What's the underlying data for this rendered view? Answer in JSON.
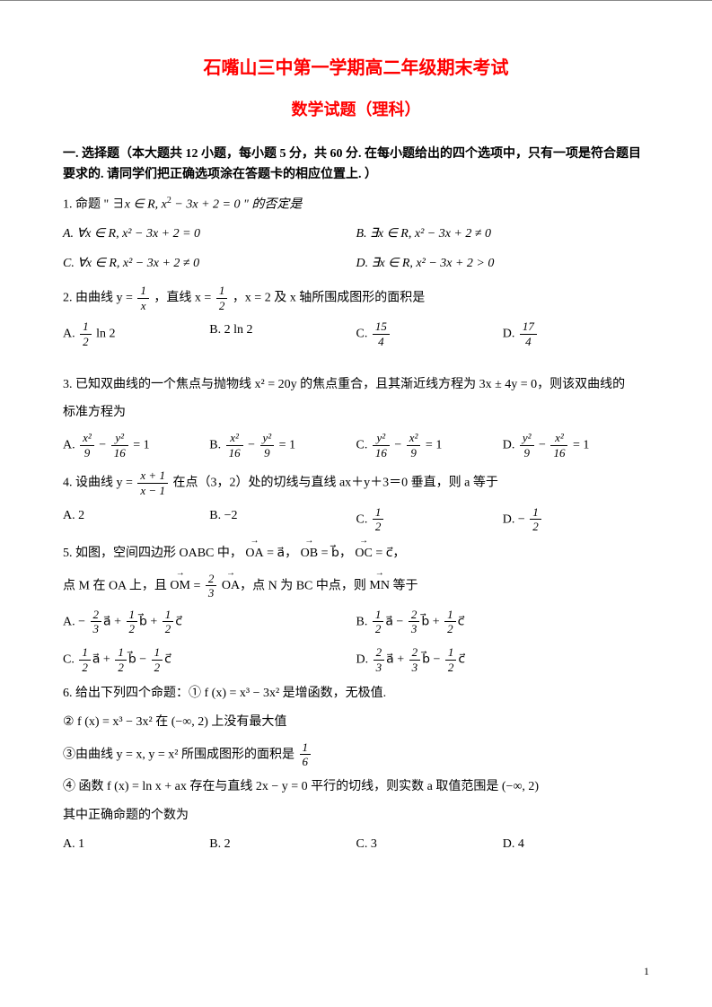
{
  "title": "石嘴山三中第一学期高二年级期末考试",
  "subtitle": "数学试题（理科）",
  "section_head": "一. 选择题（本大题共 12 小题，每小题 5 分，共 60 分. 在每小题给出的四个选项中，只有一项是符合题目要求的. 请同学们把正确选项涂在答题卡的相应位置上. ）",
  "q1": {
    "stem_pre": "1. 命题 \" ∃",
    "stem_mid": "x ∈ R, x",
    "stem_post": " − 3x + 2 = 0 \" 的否定是",
    "A": "A.  ∀x ∈ R, x² − 3x + 2 = 0",
    "B": "B.  ∃x ∈ R, x² − 3x + 2 ≠ 0",
    "C": "C.  ∀x ∈ R, x² − 3x + 2 ≠ 0",
    "D": "D.  ∃x ∈ R, x² − 3x + 2 > 0"
  },
  "q2": {
    "stem": "2. 由曲线 y = ",
    "frac1_num": "1",
    "frac1_den": "x",
    "mid1": "，直线 x = ",
    "frac2_num": "1",
    "frac2_den": "2",
    "mid2": "，x = 2 及 x 轴所围成图形的面积是",
    "A_pre": "A.  ",
    "A_num": "1",
    "A_den": "2",
    "A_post": " ln 2",
    "B": "B.  2 ln 2",
    "C_pre": "C.  ",
    "C_num": "15",
    "C_den": "4",
    "D_pre": "D.  ",
    "D_num": "17",
    "D_den": "4"
  },
  "q3": {
    "stem1": "3. 已知双曲线的一个焦点与抛物线 x² = 20y 的焦点重合，且其渐近线方程为 3x ± 4y = 0，则该双曲线的",
    "stem2": "标准方程为",
    "A_pre": "A.  ",
    "A_n1": "x²",
    "A_d1": "9",
    "A_n2": "y²",
    "A_d2": "16",
    "A_post": " = 1",
    "B_pre": "B.  ",
    "B_n1": "x²",
    "B_d1": "16",
    "B_n2": "y²",
    "B_d2": "9",
    "B_post": " = 1",
    "C_pre": "C.  ",
    "C_n1": "y²",
    "C_d1": "16",
    "C_n2": "x²",
    "C_d2": "9",
    "C_post": " = 1",
    "D_pre": "D.  ",
    "D_n1": "y²",
    "D_d1": "9",
    "D_n2": "x²",
    "D_d2": "16",
    "D_post": " = 1"
  },
  "q4": {
    "stem_pre": "4. 设曲线 y = ",
    "num": "x + 1",
    "den": "x − 1",
    "stem_post": " 在点（3，2）处的切线与直线 ax＋y＋3＝0 垂直，则 a 等于",
    "A": "A. 2",
    "B": "B. −2",
    "C_pre": "C.  ",
    "C_num": "1",
    "C_den": "2",
    "D_pre": "D.  − ",
    "D_num": "1",
    "D_den": "2"
  },
  "q5": {
    "stem1_pre": "5. 如图，空间四边形 OABC 中，",
    "oa": "OA",
    "eq1": " = a⃗，",
    "ob": "OB",
    "eq2": " = b⃗，",
    "oc": "OC",
    "eq3": " = c⃗，",
    "stem2_pre": "点 M 在 OA 上，且 ",
    "om": "OM",
    "mid": " = ",
    "fnum": "2",
    "fden": "3",
    "oa2": "OA",
    "post2": "，点 N 为 BC 中点，则 ",
    "mn": "MN",
    "post3": " 等于",
    "A_pre": "A.  − ",
    "A1n": "2",
    "A1d": "3",
    "A_a": "a⃗ + ",
    "A2n": "1",
    "A2d": "2",
    "A_b": "b⃗ + ",
    "A3n": "1",
    "A3d": "2",
    "A_c": "c⃗",
    "B_pre": "B.  ",
    "B1n": "1",
    "B1d": "2",
    "B_a": "a⃗ − ",
    "B2n": "2",
    "B2d": "3",
    "B_b": "b⃗ + ",
    "B3n": "1",
    "B3d": "2",
    "B_c": "c⃗",
    "C_pre": "C.  ",
    "C1n": "1",
    "C1d": "2",
    "C_a": "a⃗ + ",
    "C2n": "1",
    "C2d": "2",
    "C_b": "b⃗ − ",
    "C3n": "1",
    "C3d": "2",
    "C_c": "c⃗",
    "D_pre": "D.  ",
    "D1n": "2",
    "D1d": "3",
    "D_a": "a⃗ + ",
    "D2n": "2",
    "D2d": "3",
    "D_b": "b⃗ − ",
    "D3n": "1",
    "D3d": "2",
    "D_c": "c⃗"
  },
  "q6": {
    "stem": "6. 给出下列四个命题：① f (x) = x³ − 3x² 是增函数，无极值.",
    "p2": "② f (x) = x³ − 3x² 在 (−∞, 2) 上没有最大值",
    "p3_pre": "③由曲线 y = x, y = x² 所围成图形的面积是 ",
    "p3_num": "1",
    "p3_den": "6",
    "p4": "④ 函数 f (x) = ln x + ax 存在与直线 2x − y = 0 平行的切线，则实数 a 取值范围是 (−∞, 2)",
    "stem2": "其中正确命题的个数为",
    "A": "A. 1",
    "B": "B. 2",
    "C": "C. 3",
    "D": "D. 4"
  },
  "pagenum": "1"
}
